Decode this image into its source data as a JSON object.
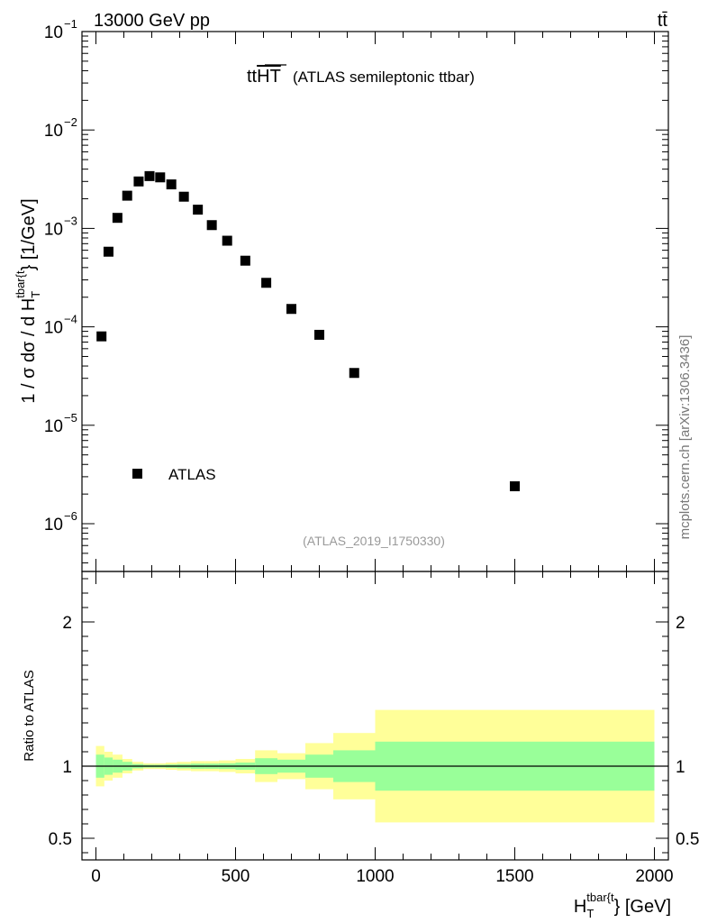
{
  "header": {
    "energy_label": "13000 GeV pp",
    "process_label": "tt̄",
    "side_label": "mcplots.cern.ch [arXiv:1306.3436]"
  },
  "chart_data": [
    {
      "type": "scatter",
      "title_main": "tt",
      "title_overline": "HT",
      "title_sub": "(ATLAS semileptonic ttbar)",
      "analysis_tag": "(ATLAS_2019_I1750330)",
      "legend_label": "ATLAS",
      "ylabel_main": "1 / σ dσ / d H",
      "ylabel_sup": "tbar{t",
      "ylabel_sub": "T",
      "ylabel_unit": "} [1/GeV]",
      "y_scale": "log",
      "ylim": [
        3.5e-07,
        0.1
      ],
      "y_tick_labels": [
        {
          "base": "10",
          "exp": "−6"
        },
        {
          "base": "10",
          "exp": "−5"
        },
        {
          "base": "10",
          "exp": "−4"
        },
        {
          "base": "10",
          "exp": "−3"
        },
        {
          "base": "10",
          "exp": "−2"
        },
        {
          "base": "10",
          "exp": "−1"
        }
      ],
      "xlim": [
        -50,
        2050
      ],
      "series": [
        {
          "name": "ATLAS",
          "x": [
            20,
            45,
            77,
            112,
            153,
            192,
            230,
            270,
            315,
            365,
            415,
            470,
            535,
            610,
            700,
            800,
            925,
            1500
          ],
          "y": [
            8e-05,
            0.00058,
            0.00128,
            0.00215,
            0.003,
            0.0034,
            0.0033,
            0.0028,
            0.0021,
            0.00155,
            0.00108,
            0.00075,
            0.00047,
            0.00028,
            0.000152,
            8.3e-05,
            3.4e-05,
            2.4e-06
          ]
        }
      ]
    },
    {
      "type": "area",
      "ylabel": "Ratio to ATLAS",
      "xlabel_main": "H",
      "xlabel_sup": "tbar{t",
      "xlabel_sub": "T",
      "xlabel_unit": "} [GeV]",
      "xlim": [
        -50,
        2050
      ],
      "ylim": [
        0.35,
        2.35
      ],
      "x_ticks": [
        0,
        500,
        1000,
        1500,
        2000
      ],
      "x_tick_labels": [
        "0",
        "500",
        "1000",
        "1500",
        "2000"
      ],
      "y_ticks": [
        0.5,
        1,
        2
      ],
      "y_tick_labels": [
        "0.5",
        "1",
        "2"
      ],
      "reference_line": 1,
      "bins": [
        {
          "lo": 0,
          "hi": 30,
          "yellow": [
            0.86,
            1.14
          ],
          "green": [
            0.92,
            1.08
          ]
        },
        {
          "lo": 30,
          "hi": 60,
          "yellow": [
            0.9,
            1.1
          ],
          "green": [
            0.94,
            1.06
          ]
        },
        {
          "lo": 60,
          "hi": 95,
          "yellow": [
            0.92,
            1.08
          ],
          "green": [
            0.955,
            1.045
          ]
        },
        {
          "lo": 95,
          "hi": 130,
          "yellow": [
            0.95,
            1.05
          ],
          "green": [
            0.97,
            1.03
          ]
        },
        {
          "lo": 130,
          "hi": 170,
          "yellow": [
            0.97,
            1.03
          ],
          "green": [
            0.985,
            1.015
          ]
        },
        {
          "lo": 170,
          "hi": 210,
          "yellow": [
            0.98,
            1.02
          ],
          "green": [
            0.99,
            1.01
          ]
        },
        {
          "lo": 210,
          "hi": 250,
          "yellow": [
            0.98,
            1.02
          ],
          "green": [
            0.99,
            1.01
          ]
        },
        {
          "lo": 250,
          "hi": 290,
          "yellow": [
            0.975,
            1.025
          ],
          "green": [
            0.988,
            1.012
          ]
        },
        {
          "lo": 290,
          "hi": 340,
          "yellow": [
            0.97,
            1.03
          ],
          "green": [
            0.985,
            1.015
          ]
        },
        {
          "lo": 340,
          "hi": 390,
          "yellow": [
            0.965,
            1.035
          ],
          "green": [
            0.982,
            1.018
          ]
        },
        {
          "lo": 390,
          "hi": 440,
          "yellow": [
            0.965,
            1.035
          ],
          "green": [
            0.982,
            1.018
          ]
        },
        {
          "lo": 440,
          "hi": 500,
          "yellow": [
            0.96,
            1.04
          ],
          "green": [
            0.98,
            1.02
          ]
        },
        {
          "lo": 500,
          "hi": 570,
          "yellow": [
            0.95,
            1.05
          ],
          "green": [
            0.975,
            1.025
          ]
        },
        {
          "lo": 570,
          "hi": 650,
          "yellow": [
            0.89,
            1.11
          ],
          "green": [
            0.945,
            1.055
          ]
        },
        {
          "lo": 650,
          "hi": 750,
          "yellow": [
            0.91,
            1.09
          ],
          "green": [
            0.955,
            1.045
          ]
        },
        {
          "lo": 750,
          "hi": 850,
          "yellow": [
            0.84,
            1.16
          ],
          "green": [
            0.92,
            1.08
          ]
        },
        {
          "lo": 850,
          "hi": 1000,
          "yellow": [
            0.77,
            1.23
          ],
          "green": [
            0.89,
            1.11
          ]
        },
        {
          "lo": 1000,
          "hi": 2000,
          "yellow": [
            0.61,
            1.39
          ],
          "green": [
            0.83,
            1.17
          ]
        }
      ]
    }
  ]
}
